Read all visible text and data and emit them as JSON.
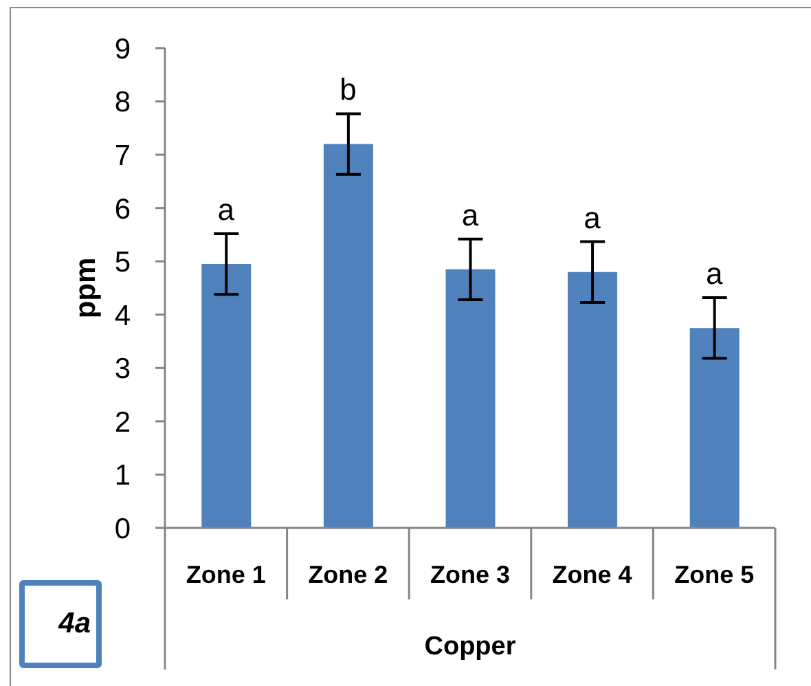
{
  "chart_data": {
    "type": "bar",
    "ylabel": "ppm",
    "xlabel": "Copper",
    "categories": [
      "Zone 1",
      "Zone 2",
      "Zone 3",
      "Zone 4",
      "Zone 5"
    ],
    "values": [
      4.95,
      7.2,
      4.85,
      4.8,
      3.75
    ],
    "errors": [
      0.57,
      0.57,
      0.57,
      0.57,
      0.57
    ],
    "color": "#4f81bd",
    "ylim": [
      0,
      9
    ],
    "yticks": [
      0,
      1,
      2,
      3,
      4,
      5,
      6,
      7,
      8,
      9
    ],
    "annotations": [
      {
        "text": "a",
        "x": "Zone 1",
        "y": 5.52
      },
      {
        "text": "b",
        "x": "Zone 2",
        "y": 7.77
      },
      {
        "text": "a",
        "x": "Zone 3",
        "y": 5.42
      },
      {
        "text": "a",
        "x": "Zone 4",
        "y": 5.37
      },
      {
        "text": "a",
        "x": "Zone 5",
        "y": 4.32
      },
      "4a"
    ]
  }
}
